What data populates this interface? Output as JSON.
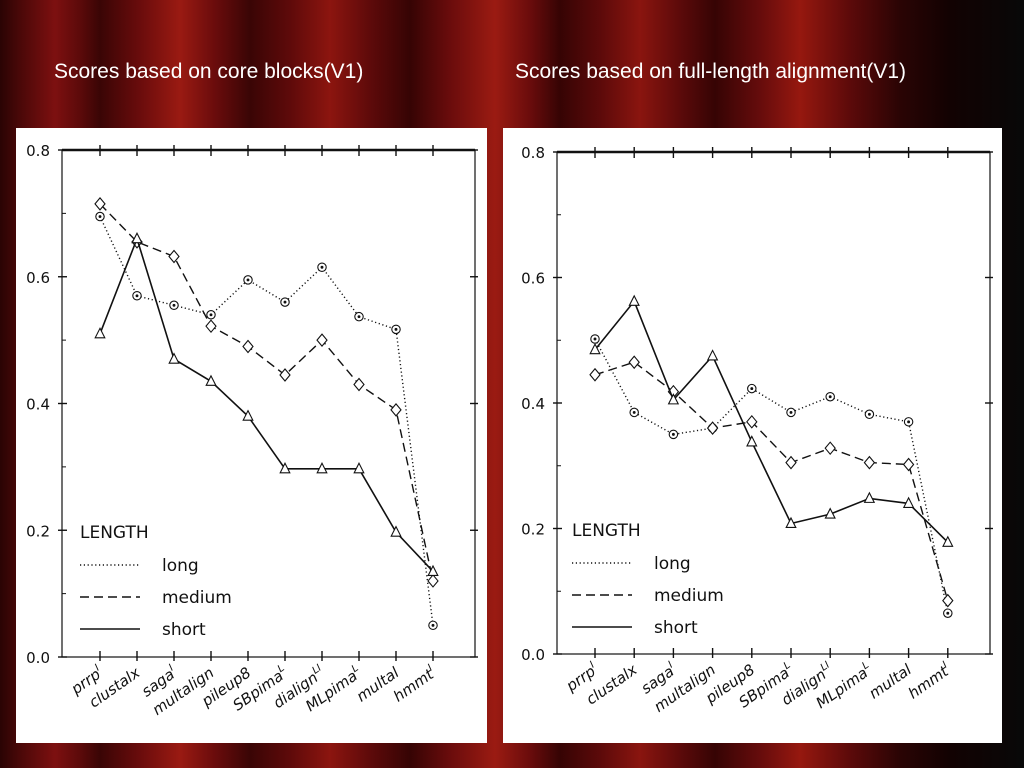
{
  "slide": {
    "left_title": "Scores based on core blocks(V1)",
    "right_title": "Scores based on full-length alignment(V1)"
  },
  "colors": {
    "background": "#6a0c0c",
    "panel": "#ffffff",
    "ink": "#111111"
  },
  "chart_data": [
    {
      "type": "line",
      "title": "Scores based on core blocks(V1)",
      "xlabel": "",
      "ylabel": "",
      "ylim": [
        0.0,
        0.8
      ],
      "yticks": [
        "0.0",
        "0.2",
        "0.4",
        "0.6",
        "0.8"
      ],
      "categories": [
        {
          "base": "prrp",
          "sup": "I"
        },
        {
          "base": "clustalx",
          "sup": ""
        },
        {
          "base": "saga",
          "sup": "I"
        },
        {
          "base": "multalign",
          "sup": ""
        },
        {
          "base": "pileup8",
          "sup": ""
        },
        {
          "base": "SBpima",
          "sup": "L"
        },
        {
          "base": "dialign",
          "sup": "LI"
        },
        {
          "base": "MLpima",
          "sup": "L"
        },
        {
          "base": "multal",
          "sup": ""
        },
        {
          "base": "hmmt",
          "sup": "I"
        }
      ],
      "legend": {
        "title": "LENGTH",
        "position": "bottom-left"
      },
      "series": [
        {
          "name": "long",
          "style": "dotted",
          "marker": "circle",
          "values": [
            0.695,
            0.57,
            0.555,
            0.54,
            0.595,
            0.56,
            0.615,
            0.537,
            0.517,
            0.05
          ]
        },
        {
          "name": "medium",
          "style": "dashed",
          "marker": "diamond",
          "values": [
            0.715,
            0.655,
            0.632,
            0.522,
            0.49,
            0.445,
            0.5,
            0.43,
            0.39,
            0.12
          ]
        },
        {
          "name": "short",
          "style": "solid",
          "marker": "triangle",
          "values": [
            0.51,
            0.66,
            0.47,
            0.435,
            0.38,
            0.297,
            0.297,
            0.297,
            0.197,
            0.135
          ]
        }
      ]
    },
    {
      "type": "line",
      "title": "Scores based on full-length alignment(V1)",
      "xlabel": "",
      "ylabel": "",
      "ylim": [
        0.0,
        0.8
      ],
      "yticks": [
        "0.0",
        "0.2",
        "0.4",
        "0.6",
        "0.8"
      ],
      "categories": [
        {
          "base": "prrp",
          "sup": "I"
        },
        {
          "base": "clustalx",
          "sup": ""
        },
        {
          "base": "saga",
          "sup": "I"
        },
        {
          "base": "multalign",
          "sup": ""
        },
        {
          "base": "pileup8",
          "sup": ""
        },
        {
          "base": "SBpima",
          "sup": "L"
        },
        {
          "base": "dialign",
          "sup": "LI"
        },
        {
          "base": "MLpima",
          "sup": "L"
        },
        {
          "base": "multal",
          "sup": ""
        },
        {
          "base": "hmmt",
          "sup": "I"
        }
      ],
      "legend": {
        "title": "LENGTH",
        "position": "bottom-left"
      },
      "series": [
        {
          "name": "long",
          "style": "dotted",
          "marker": "circle",
          "values": [
            0.502,
            0.385,
            0.35,
            0.36,
            0.423,
            0.385,
            0.41,
            0.382,
            0.37,
            0.065
          ]
        },
        {
          "name": "medium",
          "style": "dashed",
          "marker": "diamond",
          "values": [
            0.445,
            0.465,
            0.418,
            0.36,
            0.37,
            0.305,
            0.328,
            0.305,
            0.302,
            0.085
          ]
        },
        {
          "name": "short",
          "style": "solid",
          "marker": "triangle",
          "values": [
            0.485,
            0.562,
            0.405,
            0.475,
            0.338,
            0.208,
            0.223,
            0.248,
            0.24,
            0.178
          ]
        }
      ]
    }
  ]
}
